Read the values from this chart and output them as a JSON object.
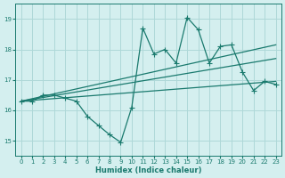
{
  "background_color": "#d4efef",
  "grid_color": "#aed8d8",
  "line_color": "#1a7a6e",
  "xlabel": "Humidex (Indice chaleur)",
  "ylim": [
    14.5,
    19.5
  ],
  "xlim": [
    -0.5,
    23.5
  ],
  "yticks": [
    15,
    16,
    17,
    18,
    19
  ],
  "xticks": [
    0,
    1,
    2,
    3,
    4,
    5,
    6,
    7,
    8,
    9,
    10,
    11,
    12,
    13,
    14,
    15,
    16,
    17,
    18,
    19,
    20,
    21,
    22,
    23
  ],
  "series_main": [
    [
      0,
      16.3
    ],
    [
      1,
      16.3
    ],
    [
      2,
      16.5
    ],
    [
      3,
      16.5
    ],
    [
      4,
      16.4
    ],
    [
      5,
      16.3
    ],
    [
      6,
      15.8
    ],
    [
      7,
      15.5
    ],
    [
      8,
      15.2
    ],
    [
      9,
      14.95
    ],
    [
      10,
      16.1
    ],
    [
      11,
      18.7
    ],
    [
      12,
      17.85
    ],
    [
      13,
      18.0
    ],
    [
      14,
      17.55
    ],
    [
      15,
      19.05
    ],
    [
      16,
      18.65
    ],
    [
      17,
      17.55
    ],
    [
      18,
      18.1
    ],
    [
      19,
      18.15
    ],
    [
      20,
      17.25
    ],
    [
      21,
      16.65
    ],
    [
      22,
      16.95
    ],
    [
      23,
      16.85
    ]
  ],
  "line_smooth1": [
    [
      0,
      16.3
    ],
    [
      23,
      18.15
    ]
  ],
  "line_smooth2": [
    [
      0,
      16.3
    ],
    [
      23,
      17.7
    ]
  ],
  "line_smooth3": [
    [
      0,
      16.3
    ],
    [
      23,
      16.95
    ]
  ]
}
